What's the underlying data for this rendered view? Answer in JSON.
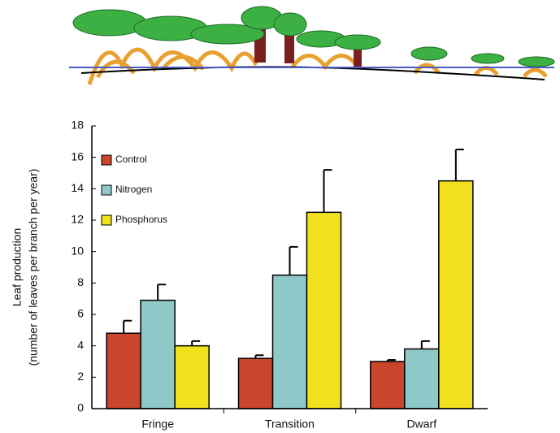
{
  "chart_data": {
    "type": "bar",
    "ylabel": [
      "Leaf production",
      "(number of leaves per branch per year)"
    ],
    "categories": [
      "Fringe",
      "Transition",
      "Dwarf"
    ],
    "series": [
      {
        "name": "Control",
        "color": "#c9452b",
        "values": [
          4.8,
          3.2,
          3.0
        ],
        "errors": [
          0.8,
          0.2,
          0.1
        ]
      },
      {
        "name": "Nitrogen",
        "color": "#8fc8c8",
        "values": [
          6.9,
          8.5,
          3.8
        ],
        "errors": [
          1.0,
          1.8,
          0.5
        ]
      },
      {
        "name": "Phosphorus",
        "color": "#f0e01e",
        "values": [
          4.0,
          12.5,
          14.5
        ],
        "errors": [
          0.3,
          2.7,
          2.0
        ]
      }
    ],
    "ylim": [
      0,
      18
    ],
    "yticks": [
      0,
      2,
      4,
      6,
      8,
      10,
      12,
      14,
      16,
      18
    ],
    "grid": false,
    "legend": "upper left"
  }
}
